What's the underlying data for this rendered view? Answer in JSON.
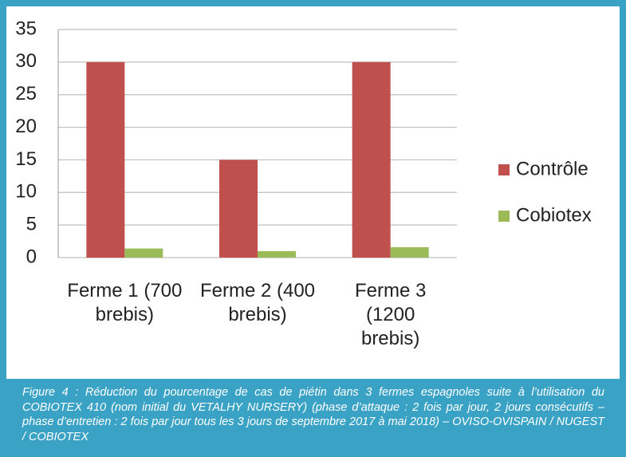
{
  "chart_data": {
    "type": "bar",
    "categories": [
      "Ferme 1 (700 brebis)",
      "Ferme 2 (400 brebis)",
      "Ferme 3 (1200 brebis)"
    ],
    "series": [
      {
        "name": "Contrôle",
        "color": "#c0504d",
        "values": [
          30,
          15,
          30
        ]
      },
      {
        "name": "Cobiotex",
        "color": "#9bbb59",
        "values": [
          1.4,
          1.0,
          1.6
        ]
      }
    ],
    "ylim": [
      0,
      35
    ],
    "yticks": [
      0,
      5,
      10,
      15,
      20,
      25,
      30,
      35
    ],
    "grid": true,
    "legend": "right",
    "caption": "Figure 4 : Réduction du pourcentage de cas de piétin dans 3 fermes espagnoles suite à l’utilisation du COBIOTEX 410 (nom initial du VETALHY NURSERY) (phase d’attaque : 2 fois par jour, 2 jours consécutifs – phase d’entretien : 2 fois par jour tous les 3 jours de septembre 2017 à mai 2018) – OVISO-OVISPAIN / NUGEST / COBIOTEX"
  }
}
